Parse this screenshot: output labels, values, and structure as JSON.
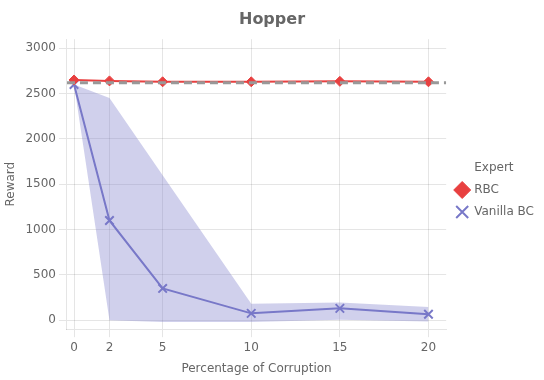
{
  "chart_data": {
    "type": "line",
    "title": "Hopper",
    "xlabel": "Percentage of Corruption",
    "ylabel": "Reward",
    "x": [
      0,
      2,
      5,
      10,
      15,
      20
    ],
    "series": [
      {
        "name": "Expert",
        "color": "#999999",
        "line_style": "dashed",
        "marker": "none",
        "value": 2620
      },
      {
        "name": "RBC",
        "color": "#e84040",
        "line_style": "solid",
        "marker": "diamond",
        "values": [
          2650,
          2640,
          2630,
          2630,
          2635,
          2630
        ]
      },
      {
        "name": "Vanilla BC",
        "color": "#7878c8",
        "line_style": "solid",
        "marker": "x",
        "values": [
          2600,
          1100,
          350,
          75,
          130,
          65
        ],
        "upper": [
          2600,
          2450,
          1600,
          180,
          195,
          145
        ],
        "lower": [
          2600,
          0,
          -20,
          -20,
          5,
          -15
        ]
      }
    ],
    "xlim": [
      -0.4,
      21
    ],
    "ylim": [
      -100,
      3100
    ],
    "xticks": [
      0,
      2,
      5,
      10,
      15,
      20
    ],
    "yticks": [
      0,
      500,
      1000,
      1500,
      2000,
      2500,
      3000
    ],
    "grid": true,
    "legend": "right"
  }
}
